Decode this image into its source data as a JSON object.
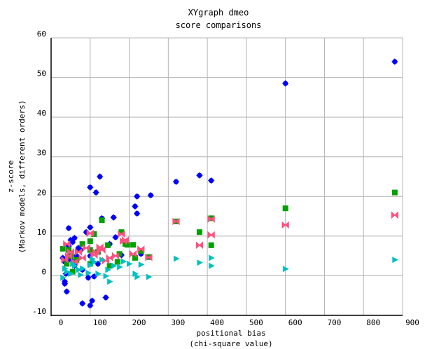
{
  "chart_data": {
    "type": "scatter",
    "title": "XYgraph dmeo",
    "subtitle": "score comparisons",
    "xlabel": [
      "positional bias",
      "(chi-square value)"
    ],
    "ylabel": [
      "z-score",
      "(Markov models, different orders)"
    ],
    "xlim": [
      0,
      900
    ],
    "ylim": [
      -10,
      60
    ],
    "xticks": [
      0,
      100,
      200,
      300,
      400,
      500,
      600,
      700,
      800,
      900
    ],
    "yticks": [
      -10,
      0,
      10,
      20,
      30,
      40,
      50,
      60
    ],
    "grid": true,
    "legend": "none",
    "series": [
      {
        "marker": "circle-star",
        "color": "#0000ff",
        "points": [
          [
            880,
            54
          ],
          [
            600,
            48.5
          ],
          [
            380,
            25.3
          ],
          [
            410,
            24
          ],
          [
            320,
            23.7
          ],
          [
            125,
            25
          ],
          [
            100,
            22.3
          ],
          [
            115,
            21
          ],
          [
            220,
            20
          ],
          [
            255,
            20.3
          ],
          [
            215,
            17.5
          ],
          [
            220,
            15.7
          ],
          [
            130,
            14.5
          ],
          [
            160,
            14.7
          ],
          [
            45,
            12
          ],
          [
            100,
            12.2
          ],
          [
            165,
            9.7
          ],
          [
            230,
            5.5
          ],
          [
            140,
            -5.5
          ],
          [
            80,
            -7
          ],
          [
            100,
            -7.5
          ],
          [
            105,
            -6.3
          ],
          [
            35,
            -1.5
          ],
          [
            40,
            -4
          ],
          [
            95,
            -0.5
          ],
          [
            60,
            9.5
          ],
          [
            55,
            8.5
          ],
          [
            45,
            7.5
          ],
          [
            70,
            7
          ],
          [
            50,
            9
          ],
          [
            90,
            11
          ],
          [
            120,
            3
          ],
          [
            65,
            5
          ],
          [
            80,
            1.5
          ],
          [
            50,
            4
          ],
          [
            35,
            3.5
          ],
          [
            30,
            4.5
          ],
          [
            110,
            -0.2
          ],
          [
            38,
            0.5
          ],
          [
            60,
            2.5
          ],
          [
            75,
            6.5
          ],
          [
            100,
            5
          ],
          [
            150,
            8
          ],
          [
            180,
            5.2
          ],
          [
            35,
            -2
          ]
        ]
      },
      {
        "marker": "square",
        "color": "#00a000",
        "points": [
          [
            880,
            21
          ],
          [
            600,
            17
          ],
          [
            410,
            14.5
          ],
          [
            380,
            11
          ],
          [
            320,
            13.7
          ],
          [
            410,
            7.7
          ],
          [
            250,
            4.7
          ],
          [
            230,
            6.2
          ],
          [
            210,
            7.8
          ],
          [
            195,
            7.8
          ],
          [
            180,
            11
          ],
          [
            175,
            5.5
          ],
          [
            145,
            7.7
          ],
          [
            130,
            14
          ],
          [
            110,
            10.5
          ],
          [
            100,
            8.7
          ],
          [
            100,
            6.5
          ],
          [
            80,
            8
          ],
          [
            50,
            5
          ],
          [
            45,
            6.5
          ],
          [
            30,
            6.8
          ],
          [
            65,
            4
          ],
          [
            40,
            3
          ],
          [
            55,
            1
          ],
          [
            150,
            2.5
          ],
          [
            215,
            4.5
          ],
          [
            190,
            8
          ],
          [
            170,
            3.5
          ],
          [
            100,
            3
          ],
          [
            120,
            6
          ]
        ]
      },
      {
        "marker": "bowtie",
        "color": "#ff5080",
        "points": [
          [
            880,
            15.3
          ],
          [
            600,
            12.8
          ],
          [
            410,
            14.3
          ],
          [
            410,
            10.3
          ],
          [
            380,
            7.7
          ],
          [
            320,
            13.7
          ],
          [
            250,
            4.6
          ],
          [
            230,
            6.7
          ],
          [
            210,
            5.5
          ],
          [
            190,
            9
          ],
          [
            185,
            8.7
          ],
          [
            180,
            10.5
          ],
          [
            165,
            5
          ],
          [
            150,
            4.5
          ],
          [
            125,
            7.2
          ],
          [
            130,
            6.5
          ],
          [
            100,
            10.7
          ],
          [
            110,
            5.2
          ],
          [
            90,
            7
          ],
          [
            70,
            6
          ],
          [
            50,
            6
          ],
          [
            40,
            8
          ],
          [
            35,
            4
          ],
          [
            45,
            5
          ],
          [
            60,
            3.5
          ],
          [
            80,
            4.5
          ],
          [
            140,
            3.8
          ],
          [
            115,
            6
          ]
        ]
      },
      {
        "marker": "triangle-right",
        "color": "#00c0c0",
        "points": [
          [
            880,
            4
          ],
          [
            600,
            1.7
          ],
          [
            410,
            4.5
          ],
          [
            410,
            2.5
          ],
          [
            380,
            3.3
          ],
          [
            320,
            4.3
          ],
          [
            250,
            -0.3
          ],
          [
            220,
            -0.3
          ],
          [
            215,
            0.5
          ],
          [
            230,
            2.8
          ],
          [
            200,
            3
          ],
          [
            185,
            3.6
          ],
          [
            175,
            2.2
          ],
          [
            160,
            2.5
          ],
          [
            145,
            1.5
          ],
          [
            150,
            -1.5
          ],
          [
            140,
            -0.1
          ],
          [
            130,
            4
          ],
          [
            120,
            0.5
          ],
          [
            110,
            3.5
          ],
          [
            100,
            2.7
          ],
          [
            95,
            0.7
          ],
          [
            80,
            1.8
          ],
          [
            70,
            1.5
          ],
          [
            60,
            2.5
          ],
          [
            50,
            0.5
          ],
          [
            40,
            1
          ],
          [
            35,
            1.8
          ],
          [
            30,
            -0.5
          ],
          [
            55,
            3
          ],
          [
            75,
            0.2
          ],
          [
            105,
            4.2
          ]
        ]
      }
    ]
  }
}
